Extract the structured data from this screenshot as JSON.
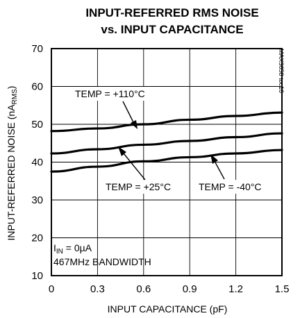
{
  "chart_data": {
    "type": "line",
    "title_line1": "INPUT-REFERRED RMS NOISE",
    "title_line2": "vs. INPUT CAPACITANCE",
    "xlabel": "INPUT CAPACITANCE (pF)",
    "ylabel_main": "INPUT-REFERRED NOISE (nA",
    "ylabel_sub": "RMS",
    "ylabel_close": ")",
    "xlim": [
      0,
      1.5
    ],
    "ylim": [
      10,
      70
    ],
    "xticks": [
      0,
      0.3,
      0.6,
      0.9,
      1.2,
      1.5
    ],
    "xtick_labels": [
      "0",
      "0.3",
      "0.6",
      "0.9",
      "1.2",
      "1.5"
    ],
    "yticks": [
      10,
      20,
      30,
      40,
      50,
      60,
      70
    ],
    "ytick_labels": [
      "10",
      "20",
      "30",
      "40",
      "50",
      "60",
      "70"
    ],
    "grid": true,
    "series": [
      {
        "name": "TEMP = +110°C",
        "x": [
          0,
          0.3,
          0.6,
          0.9,
          1.2,
          1.5
        ],
        "y": [
          48.2,
          48.9,
          50.0,
          51.2,
          52.2,
          53.1
        ]
      },
      {
        "name": "TEMP = +25°C",
        "x": [
          0,
          0.3,
          0.6,
          0.9,
          1.2,
          1.5
        ],
        "y": [
          42.3,
          43.4,
          44.6,
          45.6,
          46.6,
          47.6
        ]
      },
      {
        "name": "TEMP = -40°C",
        "x": [
          0,
          0.3,
          0.6,
          0.9,
          1.2,
          1.5
        ],
        "y": [
          37.5,
          38.8,
          40.2,
          41.3,
          42.3,
          43.2
        ]
      }
    ],
    "annotations": {
      "t110": "TEMP = +110°C",
      "t25": "TEMP = +25°C",
      "tm40": "TEMP = -40°C",
      "cond_main": "I",
      "cond_sub": "IN",
      "cond_rest": " = 0µA",
      "cond2": "467MHz BANDWIDTH",
      "side_code": "MAX3658 toc10"
    }
  }
}
